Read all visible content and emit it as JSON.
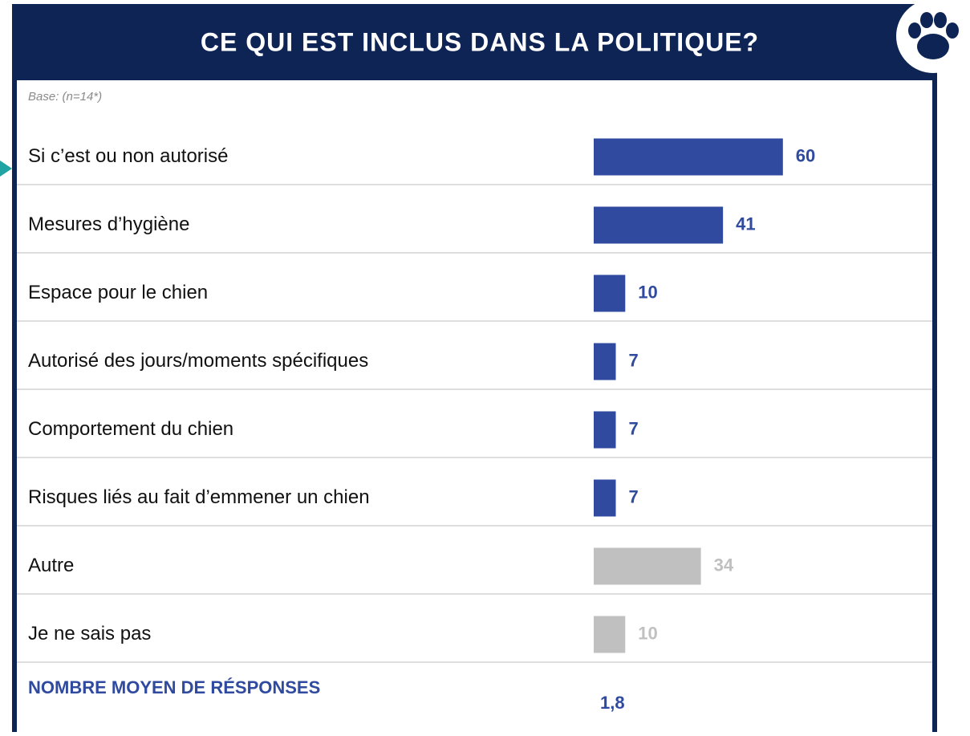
{
  "chart_data": {
    "type": "bar",
    "title": "CE QUI EST INCLUS DANS LA POLITIQUE?",
    "subtitle": "Base: (n=14*)",
    "categories": [
      "Si c’est ou non autorisé",
      "Mesures d’hygiène",
      "Espace pour le chien",
      "Autorisé des jours/moments spécifiques",
      "Comportement du chien",
      "Risques liés au fait d’emmener un chien",
      "Autre",
      "Je ne sais pas"
    ],
    "values": [
      60,
      41,
      10,
      7,
      7,
      7,
      34,
      10
    ],
    "colors": [
      "#2f4a9e",
      "#2f4a9e",
      "#2f4a9e",
      "#2f4a9e",
      "#2f4a9e",
      "#2f4a9e",
      "#c0c0c0",
      "#c0c0c0"
    ],
    "xlim": [
      0,
      100
    ],
    "average_label": "NOMBRE MOYEN DE RÉSPONSES",
    "average": "1,8"
  }
}
